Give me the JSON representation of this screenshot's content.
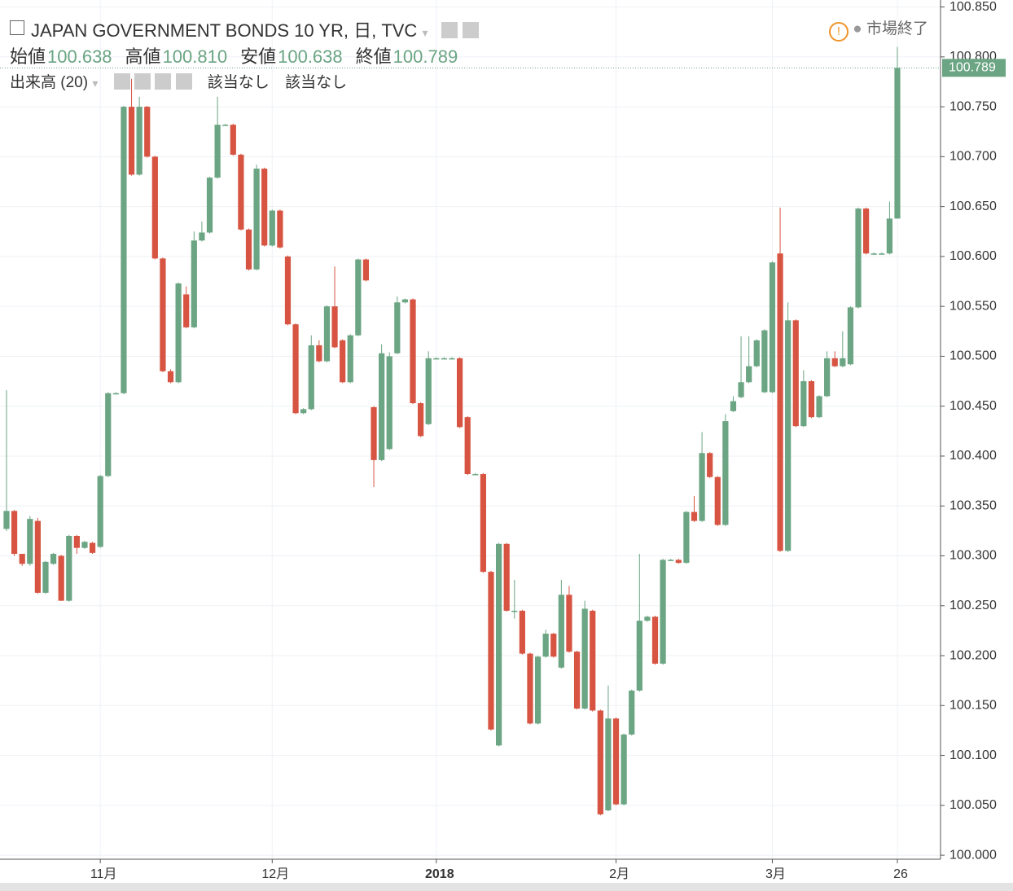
{
  "chart_data": {
    "type": "candlestick",
    "title": "JAPAN GOVERNMENT BONDS 10 YR, 日, TVC",
    "ohlc_header": [
      {
        "label": "始値",
        "value": "100.638"
      },
      {
        "label": "高値",
        "value": "100.810"
      },
      {
        "label": "安値",
        "value": "100.638"
      },
      {
        "label": "終値",
        "value": "100.789"
      }
    ],
    "indicator": "出来高 (20)",
    "indicator_values": [
      "該当なし",
      "該当なし"
    ],
    "status": "市場終了",
    "up_color": "#6ba583",
    "down_color": "#d75442",
    "grid": true,
    "ylim": [
      99.996,
      100.857
    ],
    "yticks": [
      {
        "value": 100.0,
        "label": "100.000"
      },
      {
        "value": 100.05,
        "label": "100.050"
      },
      {
        "value": 100.1,
        "label": "100.100"
      },
      {
        "value": 100.15,
        "label": "100.150"
      },
      {
        "value": 100.2,
        "label": "100.200"
      },
      {
        "value": 100.25,
        "label": "100.250"
      },
      {
        "value": 100.3,
        "label": "100.300"
      },
      {
        "value": 100.35,
        "label": "100.350"
      },
      {
        "value": 100.4,
        "label": "100.400"
      },
      {
        "value": 100.45,
        "label": "100.450"
      },
      {
        "value": 100.5,
        "label": "100.500"
      },
      {
        "value": 100.55,
        "label": "100.550"
      },
      {
        "value": 100.6,
        "label": "100.600"
      },
      {
        "value": 100.65,
        "label": "100.650"
      },
      {
        "value": 100.7,
        "label": "100.700"
      },
      {
        "value": 100.75,
        "label": "100.750"
      },
      {
        "value": 100.8,
        "label": "100.800"
      },
      {
        "value": 100.85,
        "label": "100.850"
      }
    ],
    "categories": [
      null,
      null,
      null,
      null,
      null,
      null,
      null,
      null,
      null,
      null,
      null,
      null,
      "11月",
      null,
      null,
      null,
      null,
      null,
      null,
      null,
      null,
      null,
      null,
      null,
      null,
      null,
      null,
      null,
      null,
      null,
      null,
      null,
      null,
      null,
      "12月",
      null,
      null,
      null,
      null,
      null,
      null,
      null,
      null,
      null,
      null,
      null,
      null,
      null,
      null,
      null,
      null,
      null,
      null,
      null,
      null,
      "2018",
      null,
      null,
      null,
      null,
      null,
      null,
      null,
      null,
      null,
      null,
      null,
      null,
      null,
      null,
      null,
      null,
      null,
      null,
      null,
      null,
      null,
      null,
      "2月",
      null,
      null,
      null,
      null,
      null,
      null,
      null,
      null,
      null,
      null,
      null,
      null,
      null,
      null,
      null,
      null,
      null,
      null,
      null,
      "3月",
      null,
      null,
      null,
      null,
      null,
      null,
      null,
      null,
      null,
      null,
      null,
      null,
      null,
      null,
      null,
      "26"
    ],
    "open": [
      100.327,
      100.345,
      100.302,
      100.292,
      100.335,
      100.263,
      100.292,
      100.3,
      100.255,
      100.32,
      100.308,
      100.313,
      100.309,
      100.38,
      100.463,
      100.463,
      100.75,
      100.682,
      100.75,
      100.7,
      100.598,
      100.485,
      100.474,
      100.562,
      100.529,
      100.616,
      100.624,
      100.679,
      100.732,
      100.732,
      100.702,
      100.627,
      100.587,
      100.688,
      100.611,
      100.646,
      100.6,
      100.532,
      100.443,
      100.447,
      100.511,
      100.495,
      100.55,
      100.516,
      100.474,
      100.521,
      100.597,
      100.449,
      100.396,
      100.407,
      100.503,
      100.554,
      100.557,
      100.453,
      100.432,
      100.498,
      100.498,
      100.498,
      100.498,
      100.439,
      100.382,
      100.382,
      100.284,
      100.11,
      100.312,
      100.245,
      100.245,
      100.202,
      100.132,
      100.199,
      100.222,
      100.188,
      100.261,
      100.204,
      100.147,
      100.245,
      100.145,
      100.045,
      100.137,
      100.051,
      100.121,
      100.165,
      100.235,
      100.239,
      100.192,
      100.296,
      100.296,
      100.293,
      100.344,
      100.335,
      100.403,
      100.379,
      100.331,
      100.445,
      100.459,
      100.474,
      100.49,
      100.464,
      100.464,
      100.603,
      100.305,
      100.536,
      100.43,
      100.475,
      100.439,
      100.46,
      100.498,
      100.49,
      100.492,
      100.549,
      100.648,
      100.603,
      100.603,
      100.603,
      100.638
    ],
    "high": [
      100.466,
      100.346,
      100.302,
      100.34,
      100.338,
      100.295,
      100.303,
      100.301,
      100.321,
      100.321,
      100.315,
      100.314,
      100.381,
      100.464,
      100.464,
      100.751,
      100.778,
      100.76,
      100.751,
      100.701,
      100.599,
      100.487,
      100.574,
      100.57,
      100.625,
      100.635,
      100.68,
      100.76,
      100.733,
      100.733,
      100.703,
      100.628,
      100.692,
      100.689,
      100.647,
      100.647,
      100.601,
      100.533,
      100.448,
      100.521,
      100.516,
      100.551,
      100.59,
      100.517,
      100.522,
      100.598,
      100.598,
      100.45,
      100.512,
      100.504,
      100.56,
      100.558,
      100.558,
      100.454,
      100.505,
      100.499,
      100.499,
      100.499,
      100.499,
      100.44,
      100.383,
      100.383,
      100.285,
      100.313,
      100.313,
      100.276,
      100.246,
      100.203,
      100.2,
      100.226,
      100.223,
      100.276,
      100.27,
      100.205,
      100.255,
      100.246,
      100.146,
      100.17,
      100.138,
      100.122,
      100.166,
      100.302,
      100.24,
      100.24,
      100.297,
      100.297,
      100.297,
      100.345,
      100.36,
      100.424,
      100.404,
      100.38,
      100.442,
      100.46,
      100.52,
      100.52,
      100.517,
      100.527,
      100.595,
      100.649,
      100.554,
      100.537,
      100.486,
      100.476,
      100.461,
      100.505,
      100.505,
      100.525,
      100.55,
      100.649,
      100.649,
      100.604,
      100.604,
      100.655,
      100.81
    ],
    "low": [
      100.325,
      100.3,
      100.29,
      100.29,
      100.262,
      100.262,
      100.291,
      100.255,
      100.254,
      100.302,
      100.307,
      100.302,
      100.308,
      100.379,
      100.462,
      100.462,
      100.681,
      100.681,
      100.699,
      100.597,
      100.484,
      100.473,
      100.473,
      100.528,
      100.528,
      100.615,
      100.623,
      100.678,
      100.731,
      100.701,
      100.626,
      100.586,
      100.586,
      100.61,
      100.61,
      100.608,
      100.531,
      100.442,
      100.442,
      100.446,
      100.494,
      100.494,
      100.508,
      100.473,
      100.473,
      100.52,
      100.575,
      100.369,
      100.395,
      100.406,
      100.502,
      100.553,
      100.452,
      100.419,
      100.431,
      100.497,
      100.497,
      100.497,
      100.428,
      100.381,
      100.381,
      100.283,
      100.125,
      100.109,
      100.244,
      100.237,
      100.201,
      100.131,
      100.131,
      100.198,
      100.198,
      100.187,
      100.203,
      100.146,
      100.146,
      100.144,
      100.04,
      100.044,
      100.05,
      100.05,
      100.12,
      100.164,
      100.234,
      100.191,
      100.191,
      100.295,
      100.292,
      100.292,
      100.334,
      100.334,
      100.378,
      100.33,
      100.33,
      100.444,
      100.458,
      100.473,
      100.489,
      100.463,
      100.463,
      100.304,
      100.304,
      100.429,
      100.429,
      100.438,
      100.438,
      100.459,
      100.489,
      100.489,
      100.491,
      100.548,
      100.602,
      100.602,
      100.602,
      100.602,
      100.638
    ],
    "close": [
      100.345,
      100.302,
      100.292,
      100.337,
      100.263,
      100.294,
      100.302,
      100.255,
      100.32,
      100.308,
      100.314,
      100.303,
      100.38,
      100.463,
      100.463,
      100.75,
      100.682,
      100.75,
      100.7,
      100.598,
      100.485,
      100.474,
      100.573,
      100.529,
      100.616,
      100.624,
      100.679,
      100.732,
      100.732,
      100.702,
      100.627,
      100.587,
      100.688,
      100.611,
      100.646,
      100.609,
      100.532,
      100.443,
      100.447,
      100.511,
      100.495,
      100.55,
      100.509,
      100.474,
      100.521,
      100.597,
      100.576,
      100.396,
      100.503,
      100.5,
      100.554,
      100.557,
      100.453,
      100.42,
      100.498,
      100.498,
      100.498,
      100.498,
      100.429,
      100.382,
      100.382,
      100.284,
      100.126,
      100.312,
      100.245,
      100.245,
      100.202,
      100.132,
      100.199,
      100.222,
      100.199,
      100.261,
      100.204,
      100.147,
      100.247,
      100.145,
      100.041,
      100.137,
      100.051,
      100.121,
      100.165,
      100.235,
      100.239,
      100.192,
      100.296,
      100.296,
      100.293,
      100.344,
      100.335,
      100.403,
      100.379,
      100.331,
      100.435,
      100.455,
      100.474,
      100.49,
      100.516,
      100.526,
      100.594,
      100.305,
      100.536,
      100.43,
      100.475,
      100.439,
      100.46,
      100.498,
      100.49,
      100.498,
      100.549,
      100.648,
      100.603,
      100.603,
      100.603,
      100.638,
      100.789
    ]
  }
}
